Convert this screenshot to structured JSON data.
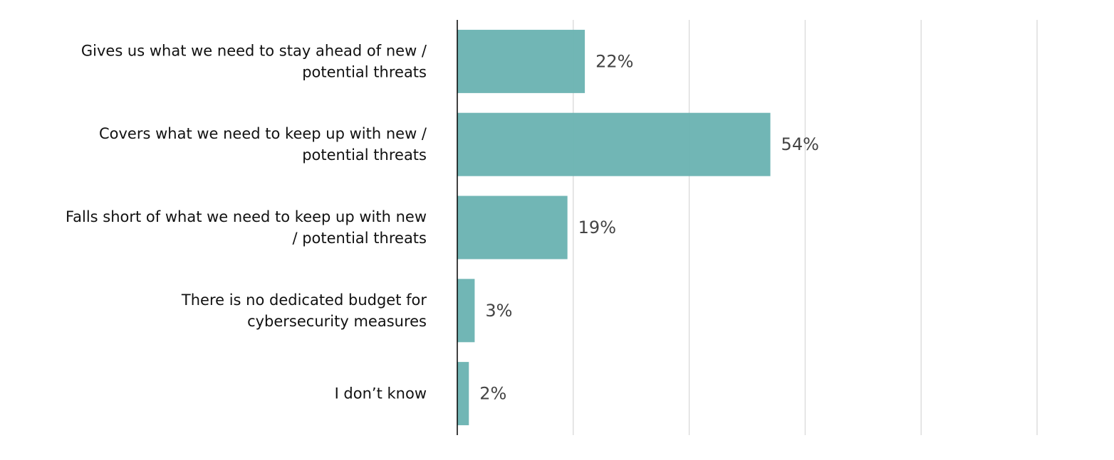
{
  "chart_data": {
    "type": "bar",
    "orientation": "horizontal",
    "categories": [
      [
        "Gives us what we need to stay ahead of new /",
        "potential threats"
      ],
      [
        "Covers what we need to keep up with new /",
        "potential threats"
      ],
      [
        "Falls short of what we need to keep up with new",
        "/ potential threats"
      ],
      [
        "There is no dedicated budget for",
        "cybersecurity measures"
      ],
      [
        "I don’t know"
      ]
    ],
    "values": [
      22,
      54,
      19,
      3,
      2
    ],
    "data_labels": [
      "22%",
      "54%",
      "19%",
      "3%",
      "2%"
    ],
    "xlim": [
      0,
      100
    ],
    "grid": true,
    "bar_color": "#6cb4b3",
    "grid_color": "#d9d9d9",
    "axis_color": "#000000"
  }
}
